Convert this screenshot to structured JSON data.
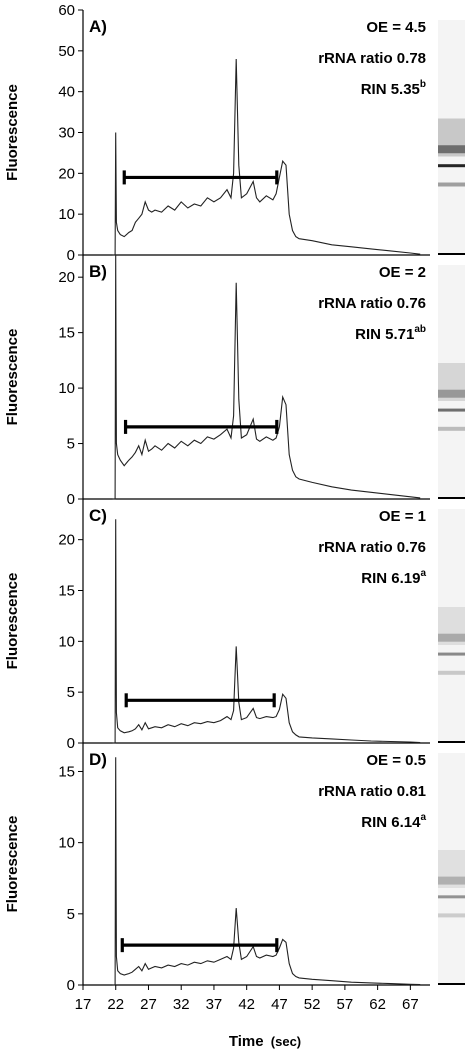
{
  "figure": {
    "xlabel": "Time",
    "xlabel_unit": "(sec)"
  },
  "chart_data": [
    {
      "type": "line",
      "panel": "A)",
      "ylabel": "Fluorescence",
      "ylim": [
        0,
        60
      ],
      "yticks": [
        0,
        10,
        20,
        30,
        40,
        50,
        60
      ],
      "xlim": [
        17,
        70
      ],
      "xticks": [
        17,
        22,
        27,
        32,
        37,
        42,
        47,
        52,
        57,
        62,
        67
      ],
      "annotations": [
        {
          "text": "OE = 4.5"
        },
        {
          "text": "rRNA ratio 0.78"
        },
        {
          "text": "RIN 5.35",
          "sup": "b"
        }
      ],
      "bracket": {
        "x": [
          23.3,
          46.6
        ],
        "y": 19
      },
      "series": [
        {
          "x": [
            21.5,
            21.9,
            22.0,
            22.1,
            22.3,
            22.7,
            23.3,
            24.0,
            24.5,
            25.0,
            25.5,
            26.0,
            26.5,
            27.0,
            27.5,
            28.0,
            29.0,
            30.0,
            31.0,
            32.0,
            33.0,
            34.0,
            35.0,
            36.0,
            37.0,
            38.0,
            39.0,
            39.6,
            40.0,
            40.4,
            40.8,
            41.2,
            42.0,
            43.0,
            43.5,
            44.0,
            45.0,
            46.0,
            46.5,
            47.0,
            47.5,
            48.0,
            48.5,
            49.0,
            49.5,
            50.0,
            52.0,
            55.0,
            58.0,
            61.0,
            64.0,
            67.0,
            68.5
          ],
          "y": [
            0,
            0,
            30,
            8,
            6,
            5,
            4.5,
            5.5,
            6,
            8,
            9,
            10,
            13,
            11,
            10.5,
            11,
            10.5,
            12,
            11,
            13,
            11.5,
            12.5,
            12,
            14,
            13,
            14,
            16,
            14,
            20,
            48,
            22,
            14,
            15,
            18,
            14,
            13,
            14.5,
            13.5,
            15,
            19,
            23,
            22,
            10,
            6,
            4.5,
            4,
            3.5,
            2.5,
            2,
            1.5,
            1,
            0.5,
            0.2
          ]
        }
      ]
    },
    {
      "type": "line",
      "panel": "B)",
      "ylabel": "Fluorescence",
      "ylim": [
        0,
        22
      ],
      "yticks": [
        0,
        5,
        10,
        15,
        20
      ],
      "xlim": [
        17,
        70
      ],
      "xticks": [
        17,
        22,
        27,
        32,
        37,
        42,
        47,
        52,
        57,
        62,
        67
      ],
      "annotations": [
        {
          "text": "OE = 2"
        },
        {
          "text": "rRNA ratio 0.76"
        },
        {
          "text": "RIN 5.71",
          "sup": "ab"
        }
      ],
      "bracket": {
        "x": [
          23.5,
          46.6
        ],
        "y": 6.5
      },
      "series": [
        {
          "x": [
            21.5,
            21.9,
            22.0,
            22.1,
            22.3,
            22.7,
            23.3,
            24.0,
            24.5,
            25.0,
            25.5,
            26.0,
            26.5,
            27.0,
            27.5,
            28.0,
            29.0,
            30.0,
            31.0,
            32.0,
            33.0,
            34.0,
            35.0,
            36.0,
            37.0,
            38.0,
            39.0,
            39.6,
            40.0,
            40.4,
            40.8,
            41.2,
            42.0,
            43.0,
            43.5,
            44.0,
            45.0,
            46.0,
            46.5,
            47.0,
            47.5,
            48.0,
            48.5,
            49.0,
            49.5,
            50.0,
            52.0,
            55.0,
            58.0,
            61.0,
            64.0,
            67.0,
            68.5
          ],
          "y": [
            0,
            0,
            22,
            5,
            4,
            3.5,
            3,
            3.5,
            3.8,
            4.2,
            4.8,
            4,
            5.3,
            4.3,
            4.5,
            4.8,
            4.4,
            5,
            4.6,
            5.2,
            4.8,
            5.3,
            5,
            5.6,
            5.4,
            5.8,
            6.3,
            5.5,
            7.5,
            19.5,
            9,
            5.5,
            5.8,
            7.2,
            5.4,
            5.2,
            5.6,
            5.3,
            5.5,
            6.5,
            9.2,
            8.5,
            4,
            2.6,
            2,
            1.8,
            1.5,
            1.1,
            0.8,
            0.6,
            0.4,
            0.2,
            0.1
          ]
        }
      ]
    },
    {
      "type": "line",
      "panel": "C)",
      "ylabel": "Fluorescence",
      "ylim": [
        0,
        24
      ],
      "yticks": [
        0,
        5,
        10,
        15,
        20
      ],
      "xlim": [
        17,
        70
      ],
      "xticks": [
        17,
        22,
        27,
        32,
        37,
        42,
        47,
        52,
        57,
        62,
        67
      ],
      "annotations": [
        {
          "text": "OE = 1"
        },
        {
          "text": "rRNA ratio 0.76"
        },
        {
          "text": "RIN 6.19",
          "sup": "a"
        }
      ],
      "bracket": {
        "x": [
          23.6,
          46.2
        ],
        "y": 4.2
      },
      "series": [
        {
          "x": [
            21.5,
            21.9,
            22.0,
            22.1,
            22.3,
            22.7,
            23.3,
            24.0,
            24.5,
            25.0,
            25.5,
            26.0,
            26.5,
            27.0,
            27.5,
            28.0,
            29.0,
            30.0,
            31.0,
            32.0,
            33.0,
            34.0,
            35.0,
            36.0,
            37.0,
            38.0,
            39.0,
            39.6,
            40.0,
            40.4,
            40.8,
            41.2,
            42.0,
            43.0,
            43.5,
            44.0,
            45.0,
            46.0,
            46.5,
            47.0,
            47.5,
            48.0,
            48.5,
            49.0,
            49.5,
            50.0,
            52.0,
            55.0,
            58.0,
            61.0,
            64.0,
            67.0,
            68.5
          ],
          "y": [
            0,
            0,
            22,
            3,
            1.5,
            1.2,
            1,
            1.1,
            1.2,
            1.4,
            1.8,
            1.3,
            2,
            1.4,
            1.5,
            1.6,
            1.5,
            1.8,
            1.6,
            1.9,
            1.7,
            2,
            1.9,
            2.1,
            2,
            2.2,
            2.6,
            2.3,
            3.2,
            9.5,
            4,
            2.3,
            2.5,
            3.4,
            2.5,
            2.4,
            2.6,
            2.5,
            2.6,
            3.3,
            4.8,
            4.4,
            2,
            1.1,
            0.8,
            0.6,
            0.5,
            0.4,
            0.3,
            0.2,
            0.15,
            0.1,
            0.05
          ]
        }
      ]
    },
    {
      "type": "line",
      "panel": "D)",
      "ylabel": "Fluorescence",
      "ylim": [
        0,
        17
      ],
      "yticks": [
        0,
        5,
        10,
        15
      ],
      "xlim": [
        17,
        70
      ],
      "xticks": [
        17,
        22,
        27,
        32,
        37,
        42,
        47,
        52,
        57,
        62,
        67
      ],
      "annotations": [
        {
          "text": "OE = 0.5"
        },
        {
          "text": "rRNA ratio 0.81"
        },
        {
          "text": "RIN 6.14",
          "sup": "a"
        }
      ],
      "bracket": {
        "x": [
          23.0,
          46.6
        ],
        "y": 2.8
      },
      "series": [
        {
          "x": [
            21.5,
            21.9,
            22.0,
            22.1,
            22.3,
            22.7,
            23.3,
            24.0,
            24.5,
            25.0,
            25.5,
            26.0,
            26.5,
            27.0,
            27.5,
            28.0,
            29.0,
            30.0,
            31.0,
            32.0,
            33.0,
            34.0,
            35.0,
            36.0,
            37.0,
            38.0,
            39.0,
            39.6,
            40.0,
            40.4,
            40.8,
            41.2,
            42.0,
            43.0,
            43.5,
            44.0,
            45.0,
            46.0,
            46.5,
            47.0,
            47.5,
            48.0,
            48.5,
            49.0,
            49.5,
            50.0,
            52.0,
            55.0,
            58.0,
            61.0,
            64.0,
            67.0,
            68.5
          ],
          "y": [
            0,
            0,
            16,
            2,
            1,
            0.8,
            0.7,
            0.8,
            0.9,
            1.1,
            1.3,
            1,
            1.5,
            1.1,
            1.2,
            1.3,
            1.2,
            1.4,
            1.3,
            1.5,
            1.4,
            1.6,
            1.5,
            1.7,
            1.6,
            1.8,
            2,
            1.8,
            2.6,
            5.4,
            3,
            1.8,
            2,
            2.7,
            2,
            1.9,
            2.1,
            2,
            2.1,
            2.6,
            3.2,
            3,
            1.5,
            0.8,
            0.6,
            0.5,
            0.4,
            0.3,
            0.2,
            0.15,
            0.1,
            0.05,
            0.03
          ]
        }
      ]
    }
  ]
}
